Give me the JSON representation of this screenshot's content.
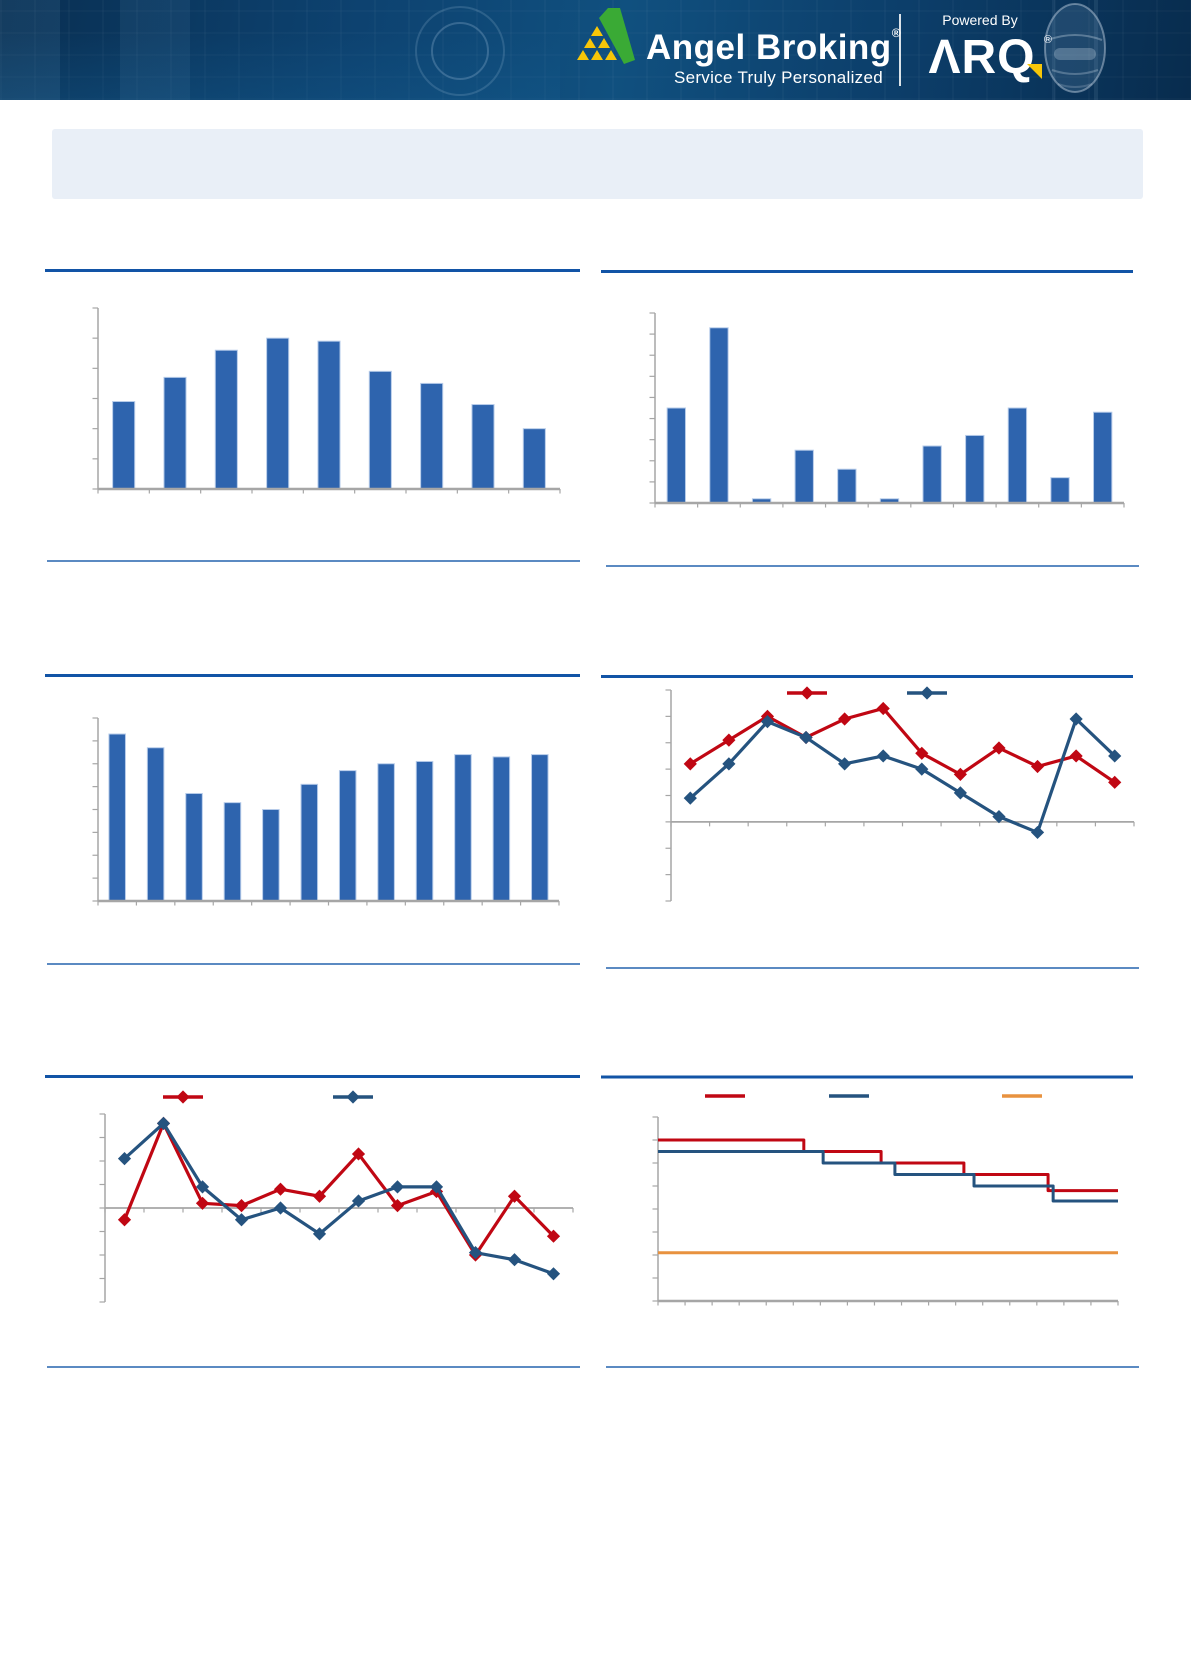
{
  "header": {
    "brand": "Angel Broking",
    "brand_registered": "®",
    "tagline": "Service Truly Personalized",
    "powered_by": "Powered By",
    "arq_wordmark": "ΛRQ",
    "arq_registered": "®"
  },
  "summary_box": {
    "content": ""
  },
  "colors": {
    "header_bg": "#0c3e6a",
    "accent_blue": "#1254a6",
    "rule_blue": "#2563ae",
    "bar_fill": "#2e64ae",
    "bar_border": "#b6cbe9",
    "axis_gray": "#a6a6a6",
    "series_red": "#c00713",
    "series_navy": "#25537f",
    "series_orange": "#e8923f",
    "logo_green": "#3aaa35",
    "logo_yellow": "#f7c608",
    "summary_bg": "#e9eff7"
  },
  "chart_data": [
    {
      "type": "bar",
      "title": "",
      "values": [
        29,
        37,
        46,
        50,
        49,
        39,
        35,
        28,
        20
      ],
      "ylim": [
        0,
        60
      ],
      "y_divisions": 6,
      "x_tick_labels": [],
      "legend_position": "none"
    },
    {
      "type": "bar",
      "title": "",
      "values": [
        45,
        83,
        2,
        25,
        16,
        2,
        27,
        32,
        45,
        12,
        43
      ],
      "ylim": [
        0,
        90
      ],
      "y_divisions": 9,
      "x_tick_labels": [],
      "legend_position": "none"
    },
    {
      "type": "bar",
      "title": "",
      "values": [
        73,
        67,
        47,
        43,
        40,
        51,
        57,
        60,
        61,
        64,
        63,
        64
      ],
      "ylim": [
        0,
        80
      ],
      "y_divisions": 8,
      "x_tick_labels": [],
      "legend_position": "none"
    },
    {
      "type": "line",
      "title": "",
      "marker": "diamond",
      "series": [
        {
          "name": "red-series",
          "color": "#c00713",
          "values": [
            22,
            31,
            40,
            32,
            39,
            43,
            26,
            18,
            28,
            21,
            25,
            15
          ]
        },
        {
          "name": "navy-series",
          "color": "#25537f",
          "values": [
            9,
            22,
            38,
            32,
            22,
            25,
            20,
            11,
            2,
            -4,
            39,
            25
          ]
        }
      ],
      "ylim": [
        -30,
        50
      ],
      "y_divisions": 8,
      "x_tick_labels": [],
      "legend_position": "top"
    },
    {
      "type": "line",
      "title": "",
      "marker": "diamond",
      "series": [
        {
          "name": "red-series",
          "color": "#c00713",
          "values": [
            -5,
            36,
            2,
            1,
            8,
            5,
            23,
            1,
            7,
            -20,
            5,
            -12
          ]
        },
        {
          "name": "navy-series",
          "color": "#25537f",
          "values": [
            21,
            36,
            9,
            -5,
            0,
            -11,
            3,
            9,
            9,
            -19,
            -22,
            -28
          ]
        }
      ],
      "ylim": [
        -40,
        40
      ],
      "y_divisions": 8,
      "x_tick_labels": [],
      "legend_position": "top"
    },
    {
      "type": "step",
      "title": "",
      "series": [
        {
          "name": "red-series",
          "color": "#c00713",
          "levels": [
            70,
            65,
            60,
            55,
            48
          ],
          "breaks": [
            0.317,
            0.485,
            0.665,
            0.848
          ]
        },
        {
          "name": "navy-series",
          "color": "#25537f",
          "levels": [
            65,
            60,
            55,
            50,
            43.5
          ],
          "breaks": [
            0.359,
            0.515,
            0.687,
            0.859
          ]
        },
        {
          "name": "orange-series",
          "color": "#e8923f",
          "levels": [
            21
          ],
          "breaks": []
        }
      ],
      "ylim": [
        0,
        80
      ],
      "y_divisions": 8,
      "x_divisions": 17,
      "x_tick_labels": [],
      "legend_position": "top"
    }
  ]
}
